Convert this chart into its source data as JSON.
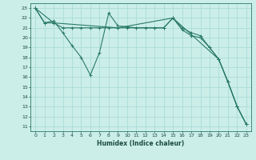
{
  "xlabel": "Humidex (Indice chaleur)",
  "bg_color": "#cceee8",
  "grid_color": "#aaddd8",
  "line_color": "#2a7a68",
  "xlim": [
    -0.5,
    23.5
  ],
  "ylim": [
    10.5,
    23.5
  ],
  "yticks": [
    11,
    12,
    13,
    14,
    15,
    16,
    17,
    18,
    19,
    20,
    21,
    22,
    23
  ],
  "xticks": [
    0,
    1,
    2,
    3,
    4,
    5,
    6,
    7,
    8,
    9,
    10,
    11,
    12,
    13,
    14,
    15,
    16,
    17,
    18,
    19,
    20,
    21,
    22,
    23
  ],
  "series": [
    {
      "x": [
        0,
        1,
        2,
        3,
        4,
        5,
        6,
        7,
        8,
        9,
        10,
        11,
        12,
        13,
        14,
        15,
        16,
        17,
        18,
        19,
        20,
        21,
        22,
        23
      ],
      "y": [
        23,
        21.5,
        21.5,
        21,
        21,
        21,
        21,
        21,
        21,
        21,
        21,
        21,
        21,
        21,
        21,
        22,
        20.8,
        20.2,
        20,
        19,
        17.8,
        15.5,
        13,
        11.2
      ]
    },
    {
      "x": [
        0,
        1,
        2,
        3,
        4,
        5,
        6,
        7,
        8,
        9,
        10,
        11,
        12,
        13,
        14,
        15,
        16,
        17,
        18,
        19,
        20,
        21,
        22,
        23
      ],
      "y": [
        23,
        21.5,
        21.7,
        20.5,
        19.2,
        18.0,
        16.2,
        18.5,
        22.5,
        21.2,
        21.1,
        21,
        21,
        21,
        21,
        22,
        21,
        20.5,
        20.2,
        19,
        17.8,
        15.5,
        13,
        11.2
      ]
    },
    {
      "x": [
        0,
        2,
        9,
        15,
        20,
        21,
        22,
        23
      ],
      "y": [
        23,
        21.5,
        21,
        22,
        17.8,
        15.5,
        13,
        11.2
      ]
    }
  ]
}
